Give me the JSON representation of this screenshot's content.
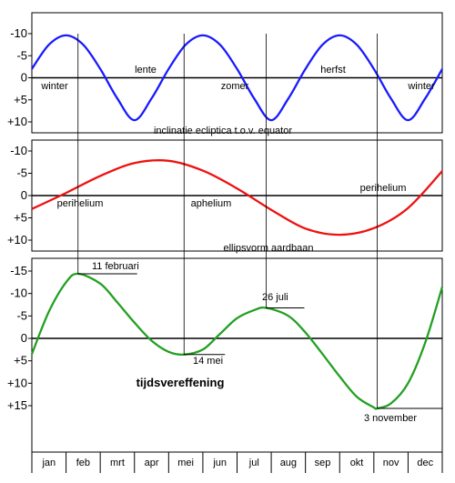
{
  "chart_data": [
    {
      "type": "line",
      "title": "inclinatie ecliptica t.o.v. equator",
      "y_ticks": [
        "-10",
        "-5",
        "0",
        "+5",
        "+10"
      ],
      "ylim": [
        -10,
        10
      ],
      "inverted_y": true,
      "color": "#1a1aff",
      "annotations": [
        "winter",
        "lente",
        "zomer",
        "herfst",
        "winter"
      ],
      "series": [
        {
          "x": [
            0,
            0.5,
            1,
            1.5,
            2,
            2.5,
            3,
            3.5,
            4,
            4.5,
            5,
            5.5,
            6,
            6.5,
            7,
            7.5,
            8,
            8.5,
            9,
            9.5,
            10,
            10.5,
            11,
            11.5,
            12
          ],
          "values": [
            -2,
            -7.5,
            -9.6,
            -7.5,
            -2,
            4.7,
            9.6,
            4.7,
            -2,
            -7.5,
            -9.6,
            -7.5,
            -2,
            4.7,
            9.6,
            4.7,
            -2,
            -7.5,
            -9.6,
            -7.5,
            -2,
            4.7,
            9.6,
            4.7,
            -2
          ]
        }
      ]
    },
    {
      "type": "line",
      "title": "ellipsvorm aardbaan",
      "y_ticks": [
        "-10",
        "-5",
        "0",
        "+5",
        "+10"
      ],
      "ylim": [
        -10,
        10
      ],
      "inverted_y": true,
      "color": "#ee1111",
      "annotations": [
        "perihelium",
        "aphelium",
        "perihelium"
      ],
      "series": [
        {
          "x": [
            0,
            1,
            2,
            3,
            4,
            5,
            6,
            7,
            8,
            9,
            10,
            11,
            12
          ],
          "values": [
            3,
            -0.6,
            -4.4,
            -7.3,
            -7.8,
            -5.6,
            -1.6,
            3.2,
            7.4,
            8.8,
            7.3,
            2.8,
            -5.5
          ]
        }
      ]
    },
    {
      "type": "line",
      "title": "tijdsvereffening",
      "y_ticks": [
        "-15",
        "-10",
        "-5",
        "0",
        "+5",
        "+10",
        "+15"
      ],
      "ylim": [
        -15,
        15
      ],
      "inverted_y": true,
      "color": "#22a022",
      "annotations": [
        {
          "label": "11 februari",
          "x": 1.35,
          "y": -14.4
        },
        {
          "label": "14 mei",
          "x": 4.45,
          "y": 3.6
        },
        {
          "label": "26 juli",
          "x": 6.85,
          "y": -6.8
        },
        {
          "label": "3 november",
          "x": 10.1,
          "y": 15.6
        }
      ],
      "series": [
        {
          "x": [
            0,
            0.5,
            1,
            1.35,
            2,
            2.5,
            3,
            3.5,
            4,
            4.45,
            5,
            5.5,
            6,
            6.5,
            6.85,
            7.5,
            8,
            8.5,
            9,
            9.5,
            10,
            10.1,
            10.5,
            11,
            11.5,
            12
          ],
          "values": [
            3.5,
            -6,
            -12.5,
            -14.4,
            -12.2,
            -8,
            -3.5,
            0.5,
            3,
            3.6,
            2.5,
            -1,
            -4.5,
            -6.3,
            -6.8,
            -5,
            -1.3,
            3.5,
            8.5,
            13,
            15.4,
            15.6,
            14.5,
            10,
            1,
            -11.5
          ]
        }
      ]
    }
  ],
  "months": [
    "jan",
    "feb",
    "mrt",
    "apr",
    "mei",
    "jun",
    "jul",
    "aug",
    "sep",
    "okt",
    "nov",
    "dec"
  ]
}
